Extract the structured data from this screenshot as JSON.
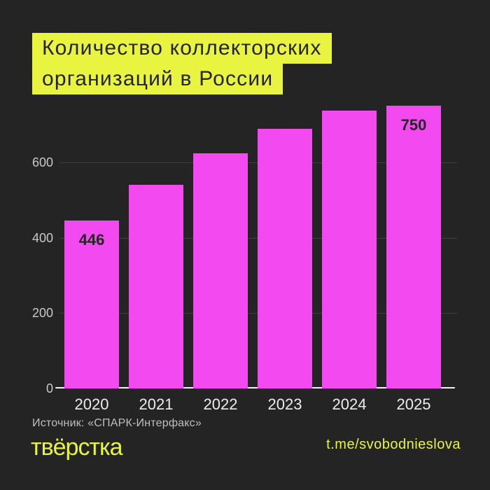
{
  "header": {
    "title_lines": [
      "Количество коллекторских",
      "организаций в России"
    ]
  },
  "footer": {
    "source": "Источник: «СПАРК-Интерфакс»",
    "logo": "твёрстка",
    "telegram": "t.me/svobodnieslova"
  },
  "colors": {
    "background": "#242424",
    "yellow": "#E9F441",
    "magenta": "#F24AF0",
    "grid": "#3E3E3E",
    "axis_label": "#C9C9C9",
    "tick_label": "#ECECEC",
    "baseline": "#F2F2F2",
    "dark_text": "#242424",
    "source_text": "#BFBFBF"
  },
  "chart_data": {
    "type": "bar",
    "title": "Количество коллекторских организаций в России",
    "categories": [
      "2020",
      "2021",
      "2022",
      "2023",
      "2024",
      "2025"
    ],
    "values": [
      446,
      541,
      624,
      690,
      738,
      750
    ],
    "value_labels": {
      "2020": "446",
      "2025": "750"
    },
    "xlabel": "",
    "ylabel": "",
    "yticks": [
      0,
      200,
      400,
      600
    ],
    "ylim": [
      0,
      770
    ],
    "grid": true,
    "legend": false,
    "bar_color": "#F24AF0"
  }
}
